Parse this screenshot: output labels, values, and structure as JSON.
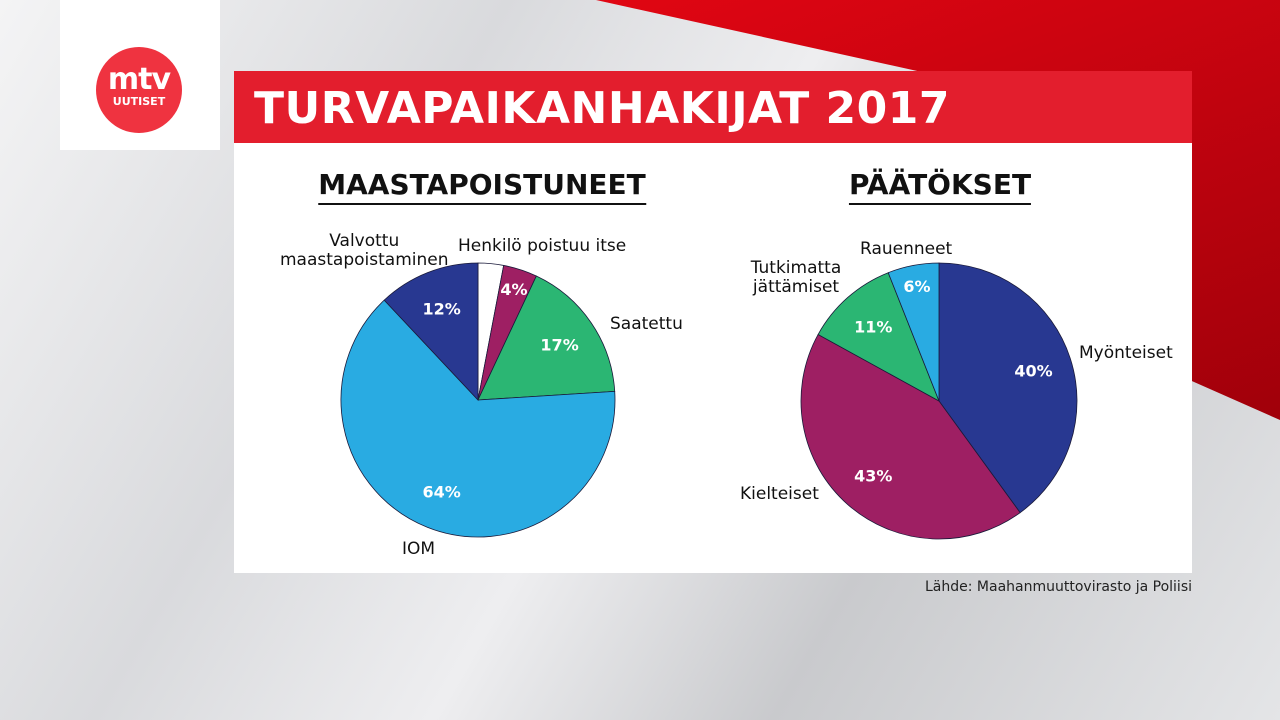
{
  "logo": {
    "text_main": "mtv",
    "text_sub": "UUTISET"
  },
  "title": "TURVAPAIKANHAKIJAT 2017",
  "source": "Lähde: Maahanmuuttovirasto ja Poliisi",
  "chart_data": [
    {
      "type": "pie",
      "title": "MAASTAPOISTUNEET",
      "start": "top",
      "direction": "clockwise",
      "slices": [
        {
          "name": "Henkilö poistuu itse",
          "value": 3,
          "label": "",
          "color": "#ffffff"
        },
        {
          "name": "",
          "value": 4,
          "label": "4%",
          "color": "#9e1f63"
        },
        {
          "name": "Saatettu",
          "value": 17,
          "label": "17%",
          "color": "#2bb673"
        },
        {
          "name": "IOM",
          "value": 64,
          "label": "64%",
          "color": "#29abe2"
        },
        {
          "name": "Valvottu maastapoistaminen",
          "value": 12,
          "label": "12%",
          "color": "#283891"
        }
      ]
    },
    {
      "type": "pie",
      "title": "PÄÄTÖKSET",
      "start": "top",
      "direction": "clockwise",
      "slices": [
        {
          "name": "Myönteiset",
          "value": 40,
          "label": "40%",
          "color": "#283891"
        },
        {
          "name": "Kielteiset",
          "value": 43,
          "label": "43%",
          "color": "#9e1f63"
        },
        {
          "name": "Tutkimatta jättämiset",
          "value": 11,
          "label": "11%",
          "color": "#2bb673"
        },
        {
          "name": "Rauenneet",
          "value": 6,
          "label": "6%",
          "color": "#29abe2"
        }
      ]
    }
  ]
}
